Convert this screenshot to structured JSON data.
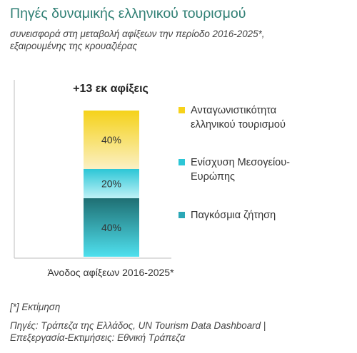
{
  "header": {
    "title": "Πηγές δυναμικής ελληνικού τουρισμού",
    "subtitle_line1": "συνεισφορά στη μεταβολή αφίξεων την περίοδο 2016-2025*,",
    "subtitle_line2": "εξαιρουμένης της κρουαζιέρας"
  },
  "chart_data": {
    "type": "bar",
    "stacked": true,
    "categories": [
      "Άνοδος αφίξεων 2016-2025*"
    ],
    "total_label": "+13 εκ αφίξεις",
    "series": [
      {
        "name": "Παγκόσμια ζήτηση",
        "values": [
          40
        ],
        "label": "40%",
        "color_top": "#1f6f73",
        "color_bottom": "#4fe0ee"
      },
      {
        "name": "Ενίσχυση Μεσογείου-Ευρώπης",
        "values": [
          20
        ],
        "label": "20%",
        "color_top": "#2cc6d6",
        "color_bottom": "#bff2f7"
      },
      {
        "name": "Ανταγωνιστικότητα ελληνικού τουρισμού",
        "values": [
          40
        ],
        "label": "40%",
        "color_top": "#f5d21a",
        "color_bottom": "#fbf0c4"
      }
    ],
    "ylim": [
      0,
      100
    ],
    "legend_position": "right"
  },
  "legend": [
    {
      "label": "Ανταγωνιστικότητα\nελληνικού τουρισμού",
      "color": "#f7d21b"
    },
    {
      "label": "Ενίσχυση Μεσογείου-\nΕυρώπης",
      "color": "#2cc6d6"
    },
    {
      "label": "Παγκόσμια ζήτηση",
      "color": "#2aa7b6"
    }
  ],
  "footer": {
    "note": "[*] Εκτίμηση",
    "source_line1": "Πηγές: Τράπεζα της Ελλάδος, UN Tourism Data Dashboard |",
    "source_line2": "Επεξεργασία-Εκτιμήσεις: Εθνική Τράπεζα"
  }
}
